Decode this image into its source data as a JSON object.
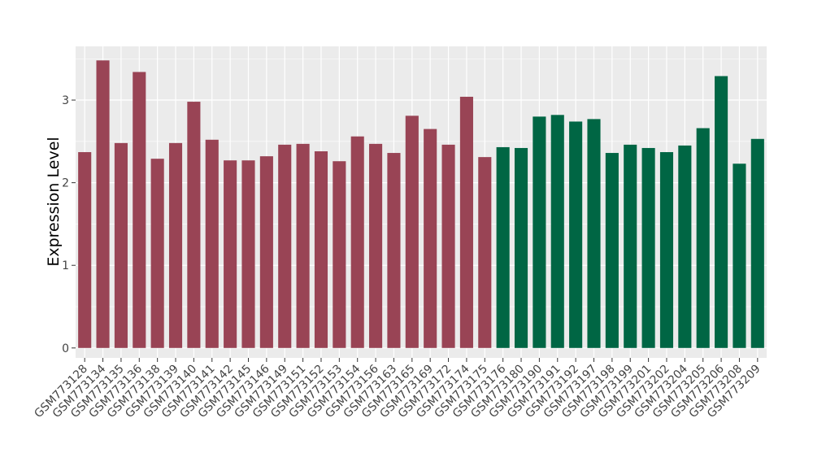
{
  "chart_data": {
    "type": "bar",
    "ylabel": "Expression Level",
    "ylim": [
      -0.12,
      3.65
    ],
    "yticks": [
      0,
      1,
      2,
      3
    ],
    "grid": true,
    "categories": [
      "GSM773128",
      "GSM773134",
      "GSM773135",
      "GSM773136",
      "GSM773138",
      "GSM773139",
      "GSM773140",
      "GSM773141",
      "GSM773142",
      "GSM773145",
      "GSM773146",
      "GSM773149",
      "GSM773151",
      "GSM773152",
      "GSM773153",
      "GSM773154",
      "GSM773156",
      "GSM773163",
      "GSM773165",
      "GSM773169",
      "GSM773172",
      "GSM773174",
      "GSM773175",
      "GSM773176",
      "GSM773180",
      "GSM773190",
      "GSM773191",
      "GSM773192",
      "GSM773197",
      "GSM773198",
      "GSM773199",
      "GSM773201",
      "GSM773202",
      "GSM773204",
      "GSM773205",
      "GSM773206",
      "GSM773208",
      "GSM773209"
    ],
    "values": [
      2.37,
      3.48,
      2.48,
      3.34,
      2.29,
      2.48,
      2.98,
      2.52,
      2.27,
      2.27,
      2.32,
      2.46,
      2.47,
      2.38,
      2.26,
      2.56,
      2.47,
      2.36,
      2.81,
      2.65,
      2.46,
      3.04,
      2.31,
      2.43,
      2.42,
      2.8,
      2.82,
      2.74,
      2.77,
      2.36,
      2.46,
      2.42,
      2.37,
      2.45,
      2.66,
      3.29,
      2.23,
      2.53
    ],
    "colors": [
      "#994455",
      "#994455",
      "#994455",
      "#994455",
      "#994455",
      "#994455",
      "#994455",
      "#994455",
      "#994455",
      "#994455",
      "#994455",
      "#994455",
      "#994455",
      "#994455",
      "#994455",
      "#994455",
      "#994455",
      "#994455",
      "#994455",
      "#994455",
      "#994455",
      "#994455",
      "#994455",
      "#006644",
      "#006644",
      "#006644",
      "#006644",
      "#006644",
      "#006644",
      "#006644",
      "#006644",
      "#006644",
      "#006644",
      "#006644",
      "#006644",
      "#006644",
      "#006644",
      "#006644"
    ],
    "panel_background": "#EBEBEB",
    "grid_color": "#FFFFFF"
  }
}
